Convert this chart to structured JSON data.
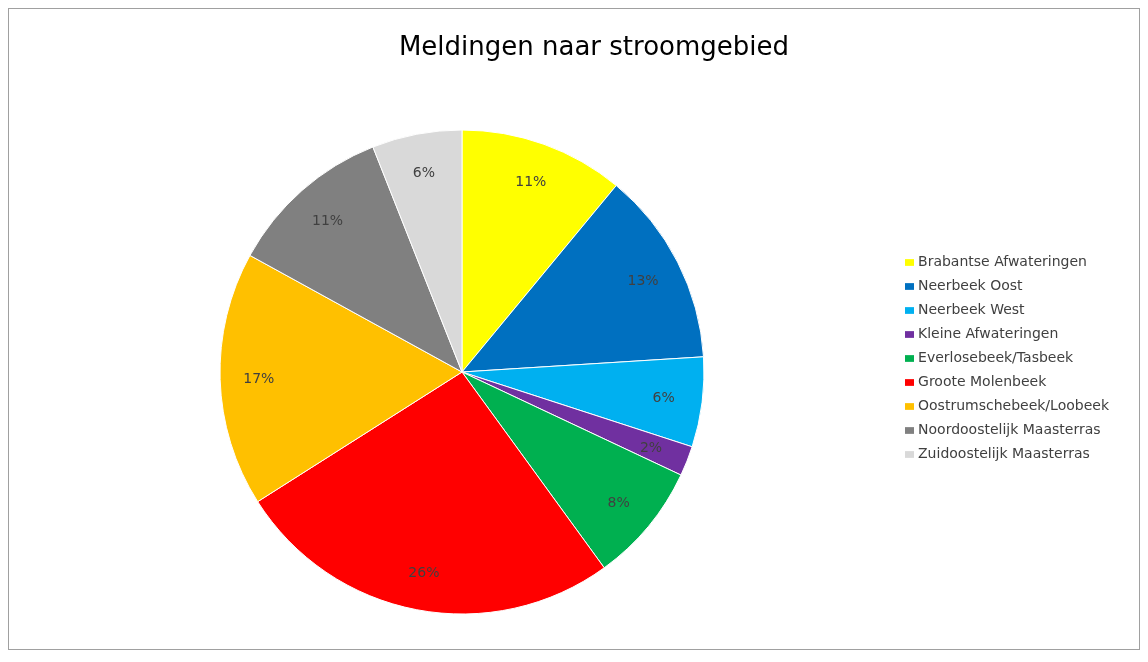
{
  "chart_data": {
    "type": "pie",
    "title": "Meldingen naar stroomgebied",
    "categories": [
      "Brabantse Afwateringen",
      "Neerbeek Oost",
      "Neerbeek West",
      "Kleine Afwateringen",
      "Everlosebeek/Tasbeek",
      "Groote Molenbeek",
      "Oostrumschebeek/Loobeek",
      "Noordoostelijk Maasterras",
      "Zuidoostelijk Maasterras"
    ],
    "values": [
      11,
      13,
      6,
      2,
      8,
      26,
      17,
      11,
      6
    ],
    "value_labels": [
      "11%",
      "13%",
      "6%",
      "2%",
      "8%",
      "26%",
      "17%",
      "11%",
      "6%"
    ],
    "colors": [
      "#ffff00",
      "#0070c0",
      "#00b0f0",
      "#7030a0",
      "#00b050",
      "#ff0000",
      "#ffc000",
      "#808080",
      "#d9d9d9"
    ],
    "legend": "right"
  }
}
